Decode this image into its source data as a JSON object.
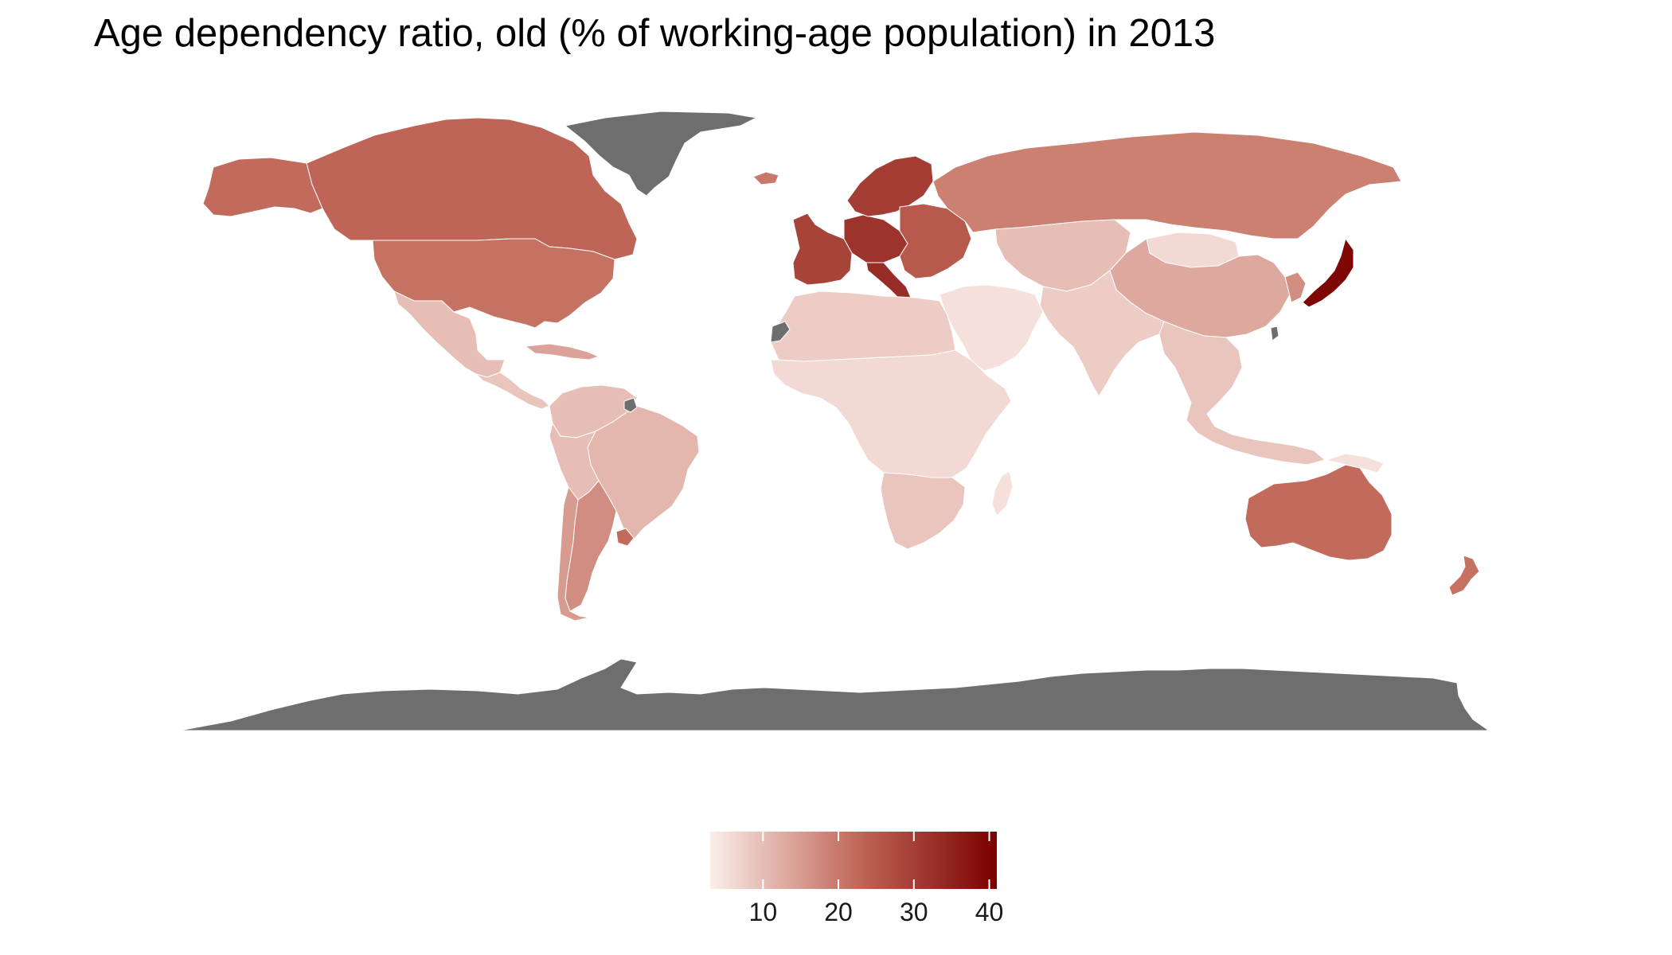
{
  "title": "Age dependency ratio, old (% of working-age population) in 2013",
  "map": {
    "type": "choropleth",
    "projection": "equirectangular",
    "no_data_color": "#6e6e6e",
    "background": "#ffffff",
    "regions": [
      {
        "name": "Greenland",
        "value": null
      },
      {
        "name": "Canada",
        "value": 23
      },
      {
        "name": "Alaska (United States)",
        "value": 22
      },
      {
        "name": "United States",
        "value": 21
      },
      {
        "name": "Mexico",
        "value": 10
      },
      {
        "name": "Central America",
        "value": 9
      },
      {
        "name": "Caribbean",
        "value": 14
      },
      {
        "name": "Colombia / Venezuela",
        "value": 10
      },
      {
        "name": "Brazil",
        "value": 11
      },
      {
        "name": "French Guiana",
        "value": null
      },
      {
        "name": "Andean South America",
        "value": 10
      },
      {
        "name": "Argentina",
        "value": 17
      },
      {
        "name": "Chile",
        "value": 15
      },
      {
        "name": "Uruguay",
        "value": 22
      },
      {
        "name": "Western Europe",
        "value": 29
      },
      {
        "name": "Germany / Central Europe",
        "value": 32
      },
      {
        "name": "Italy",
        "value": 33
      },
      {
        "name": "Scandinavia",
        "value": 30
      },
      {
        "name": "Eastern Europe",
        "value": 25
      },
      {
        "name": "Iceland",
        "value": 20
      },
      {
        "name": "Russia",
        "value": 19
      },
      {
        "name": "Kazakhstan / Central Asia",
        "value": 10
      },
      {
        "name": "Mongolia",
        "value": 6
      },
      {
        "name": "China",
        "value": 13
      },
      {
        "name": "Japan",
        "value": 40
      },
      {
        "name": "Korea",
        "value": 17
      },
      {
        "name": "Taiwan",
        "value": null
      },
      {
        "name": "India / South Asia",
        "value": 8
      },
      {
        "name": "Southeast Asia",
        "value": 9
      },
      {
        "name": "Middle East",
        "value": 5
      },
      {
        "name": "North Africa",
        "value": 8
      },
      {
        "name": "Western Sahara",
        "value": null
      },
      {
        "name": "Sub-Saharan Africa",
        "value": 6
      },
      {
        "name": "Southern Africa",
        "value": 9
      },
      {
        "name": "Madagascar",
        "value": 5
      },
      {
        "name": "Australia",
        "value": 22
      },
      {
        "name": "New Zealand",
        "value": 21
      },
      {
        "name": "Papua New Guinea / Melanesia",
        "value": 5
      },
      {
        "name": "Antarctica",
        "value": null
      }
    ]
  },
  "legend": {
    "min": 3,
    "max": 41,
    "colors": [
      "#fbeeea",
      "#c26b5c",
      "#7a0000"
    ],
    "ticks": [
      10,
      20,
      30,
      40
    ],
    "tick_labels": [
      "10",
      "20",
      "30",
      "40"
    ]
  }
}
